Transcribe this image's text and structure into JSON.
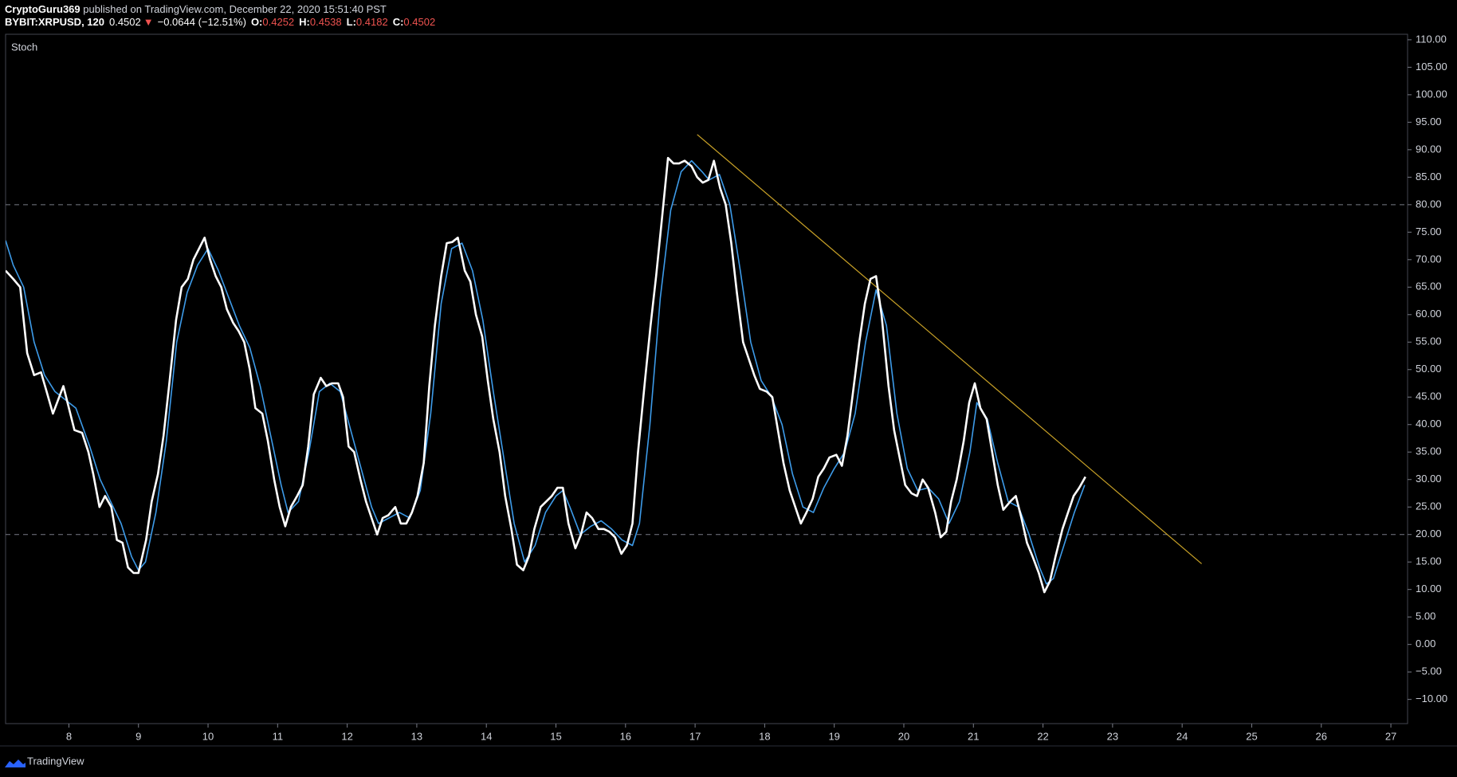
{
  "header": {
    "author": "CryptoGuru369",
    "published": " published on TradingView.com, December 22, 2020 15:51:40 PST",
    "symbol": "BYBIT:XRPUSD, 120",
    "price": "0.4502",
    "arrow": "▼",
    "change": "−0.0644 (−12.51%)",
    "ohlc": [
      {
        "label": "O:",
        "value": "0.4252"
      },
      {
        "label": "H:",
        "value": "0.4538"
      },
      {
        "label": "L:",
        "value": "0.4182"
      },
      {
        "label": "C:",
        "value": "0.4502"
      }
    ]
  },
  "footer": {
    "brand": "TradingView"
  },
  "chart_data": {
    "type": "line",
    "title": "Stoch",
    "xlim": [
      7.09,
      27.24
    ],
    "xticks": [
      8,
      9,
      10,
      11,
      12,
      13,
      14,
      15,
      16,
      17,
      18,
      19,
      20,
      21,
      22,
      23,
      24,
      25,
      26,
      27
    ],
    "ylim": [
      -14.4,
      111
    ],
    "yticks": [
      {
        "value": 110,
        "label": "110.00"
      },
      {
        "value": 105,
        "label": "105.00"
      },
      {
        "value": 100,
        "label": "100.00"
      },
      {
        "value": 95,
        "label": "95.00"
      },
      {
        "value": 90,
        "label": "90.00"
      },
      {
        "value": 85,
        "label": "85.00"
      },
      {
        "value": 80,
        "label": "80.00"
      },
      {
        "value": 75,
        "label": "75.00"
      },
      {
        "value": 70,
        "label": "70.00"
      },
      {
        "value": 65,
        "label": "65.00"
      },
      {
        "value": 60,
        "label": "60.00"
      },
      {
        "value": 55,
        "label": "55.00"
      },
      {
        "value": 50,
        "label": "50.00"
      },
      {
        "value": 45,
        "label": "45.00"
      },
      {
        "value": 40,
        "label": "40.00"
      },
      {
        "value": 35,
        "label": "35.00"
      },
      {
        "value": 30,
        "label": "30.00"
      },
      {
        "value": 25,
        "label": "25.00"
      },
      {
        "value": 20,
        "label": "20.00"
      },
      {
        "value": 15,
        "label": "15.00"
      },
      {
        "value": 10,
        "label": "10.00"
      },
      {
        "value": 5,
        "label": "5.00"
      },
      {
        "value": 0,
        "label": "0.00"
      },
      {
        "value": -5,
        "label": "−5.00"
      },
      {
        "value": -10,
        "label": "−10.00"
      }
    ],
    "grid": false,
    "hlines": [
      80,
      20
    ],
    "hline_color": "#787b86",
    "trendline": {
      "x": [
        17.03,
        24.28
      ],
      "y": [
        92.76,
        14.68
      ],
      "color": "#c9a227"
    },
    "series": [
      {
        "color": "#ffffff",
        "x": [
          7.09,
          7.2,
          7.3,
          7.4,
          7.5,
          7.6,
          7.68,
          7.77,
          7.92,
          8.08,
          8.19,
          8.28,
          8.35,
          8.44,
          8.52,
          8.61,
          8.69,
          8.77,
          8.85,
          8.93,
          9.0,
          9.11,
          9.19,
          9.28,
          9.36,
          9.44,
          9.54,
          9.62,
          9.71,
          9.79,
          9.87,
          9.95,
          10.03,
          10.11,
          10.19,
          10.27,
          10.36,
          10.44,
          10.52,
          10.6,
          10.68,
          10.78,
          10.86,
          10.95,
          11.03,
          11.11,
          11.19,
          11.28,
          11.36,
          11.44,
          11.52,
          11.62,
          11.7,
          11.78,
          11.87,
          11.94,
          12.02,
          12.1,
          12.19,
          12.27,
          12.35,
          12.43,
          12.51,
          12.59,
          12.69,
          12.77,
          12.85,
          12.93,
          13.01,
          13.1,
          13.18,
          13.26,
          13.35,
          13.43,
          13.51,
          13.59,
          13.69,
          13.77,
          13.85,
          13.94,
          14.02,
          14.1,
          14.19,
          14.27,
          14.36,
          14.44,
          14.53,
          14.61,
          14.69,
          14.78,
          14.86,
          14.94,
          15.02,
          15.1,
          15.18,
          15.28,
          15.36,
          15.44,
          15.52,
          15.61,
          15.69,
          15.77,
          15.85,
          15.94,
          16.02,
          16.1,
          16.18,
          16.28,
          16.36,
          16.44,
          16.52,
          16.61,
          16.69,
          16.77,
          16.85,
          16.95,
          17.03,
          17.11,
          17.19,
          17.27,
          17.36,
          17.44,
          17.52,
          17.6,
          17.69,
          17.77,
          17.85,
          17.93,
          18.03,
          18.11,
          18.19,
          18.27,
          18.36,
          18.44,
          18.52,
          18.6,
          18.69,
          18.77,
          18.85,
          18.93,
          19.03,
          19.11,
          19.19,
          19.27,
          19.36,
          19.44,
          19.52,
          19.6,
          19.68,
          19.78,
          19.86,
          19.94,
          20.02,
          20.11,
          20.19,
          20.27,
          20.35,
          20.45,
          20.53,
          20.61,
          20.68,
          20.76,
          20.86,
          20.94,
          21.02,
          21.1,
          21.19,
          21.27,
          21.35,
          21.43,
          21.53,
          21.61,
          21.69,
          21.77,
          21.85,
          21.94,
          22.02,
          22.1,
          22.18,
          22.28,
          22.36,
          22.44,
          22.52,
          22.61
        ],
        "values": [
          68,
          66.5,
          65,
          53,
          49,
          49.5,
          46,
          42,
          47,
          39,
          38.5,
          35,
          31,
          25,
          27,
          25,
          19,
          18.5,
          14,
          13,
          13,
          19,
          26,
          31,
          38,
          47,
          59,
          65,
          66.5,
          70,
          72,
          74,
          70,
          67,
          65,
          61,
          58.5,
          57,
          55,
          50,
          43,
          42,
          37,
          30,
          25,
          21.5,
          25,
          27,
          29,
          36,
          45.5,
          48.5,
          47,
          47.5,
          47.5,
          45,
          36,
          35,
          30,
          26,
          23,
          20,
          23,
          23.5,
          25,
          22,
          22,
          24,
          27,
          33,
          47,
          58,
          67,
          73,
          73.2,
          74,
          68,
          66,
          60,
          56,
          48,
          41,
          35,
          27,
          21,
          14.5,
          13.5,
          16,
          21,
          25,
          26,
          27,
          28.5,
          28.5,
          22,
          17.5,
          20,
          24,
          23,
          21,
          21,
          20.5,
          19.5,
          16.5,
          18,
          22,
          35,
          48,
          58,
          67,
          77,
          88.5,
          87.5,
          87.5,
          88,
          87,
          85,
          84,
          84.5,
          88,
          83,
          80,
          73,
          64,
          55,
          52,
          49,
          46.5,
          46,
          45,
          39,
          33,
          28,
          25,
          22,
          24,
          26.5,
          30.5,
          32,
          34,
          34.5,
          32.5,
          38,
          46,
          55,
          62,
          66.5,
          67,
          60,
          47,
          39,
          34,
          29,
          27.5,
          27,
          30,
          28.5,
          24,
          19.5,
          20.5,
          26,
          30,
          37,
          44,
          47.5,
          43,
          41,
          35,
          29,
          24.5,
          26,
          27,
          23,
          18.5,
          16,
          13,
          9.5,
          11.5,
          16,
          21,
          24,
          27,
          28.5,
          30.5
        ]
      },
      {
        "color": "#3d9be9",
        "x": [
          7.09,
          7.2,
          7.35,
          7.5,
          7.65,
          7.8,
          7.95,
          8.1,
          8.3,
          8.45,
          8.6,
          8.75,
          8.9,
          9.0,
          9.1,
          9.25,
          9.4,
          9.55,
          9.7,
          9.85,
          10.0,
          10.15,
          10.3,
          10.45,
          10.6,
          10.75,
          10.9,
          11.05,
          11.15,
          11.3,
          11.45,
          11.6,
          11.75,
          11.9,
          12.05,
          12.2,
          12.35,
          12.45,
          12.6,
          12.75,
          12.9,
          13.05,
          13.2,
          13.35,
          13.5,
          13.65,
          13.8,
          13.95,
          14.1,
          14.25,
          14.4,
          14.55,
          14.7,
          14.85,
          15.0,
          15.1,
          15.2,
          15.35,
          15.5,
          15.65,
          15.8,
          15.95,
          16.1,
          16.2,
          16.35,
          16.5,
          16.65,
          16.8,
          16.95,
          17.1,
          17.2,
          17.35,
          17.5,
          17.65,
          17.8,
          17.95,
          18.1,
          18.25,
          18.4,
          18.55,
          18.7,
          18.85,
          19.0,
          19.15,
          19.3,
          19.45,
          19.6,
          19.75,
          19.9,
          20.05,
          20.2,
          20.35,
          20.5,
          20.65,
          20.8,
          20.95,
          21.05,
          21.2,
          21.35,
          21.5,
          21.65,
          21.8,
          21.95,
          22.05,
          22.15,
          22.3,
          22.45,
          22.6
        ],
        "values": [
          73.5,
          69,
          65,
          55,
          49,
          46,
          44.5,
          43,
          36,
          30,
          26,
          22,
          16,
          13.5,
          15,
          24,
          37,
          55,
          64,
          69,
          72,
          68,
          63,
          58,
          54,
          47,
          38,
          29,
          24,
          26,
          35,
          46,
          47.5,
          46,
          39,
          32,
          25,
          22,
          23,
          24,
          23,
          28,
          42,
          62,
          72,
          73,
          68,
          59,
          46,
          34,
          22,
          15,
          18,
          24,
          27,
          28,
          25,
          20,
          21.5,
          22.5,
          21,
          19,
          18,
          22,
          40,
          63,
          79,
          86,
          88,
          86,
          84.5,
          85.5,
          80,
          68,
          55,
          48,
          45,
          40,
          31,
          25,
          24,
          28.5,
          32,
          35,
          42,
          55,
          64.5,
          58,
          42,
          32,
          28,
          28.5,
          26.5,
          22,
          26,
          35,
          44,
          41,
          33,
          26,
          25,
          20,
          14,
          11,
          12,
          18,
          24,
          29
        ]
      }
    ]
  }
}
